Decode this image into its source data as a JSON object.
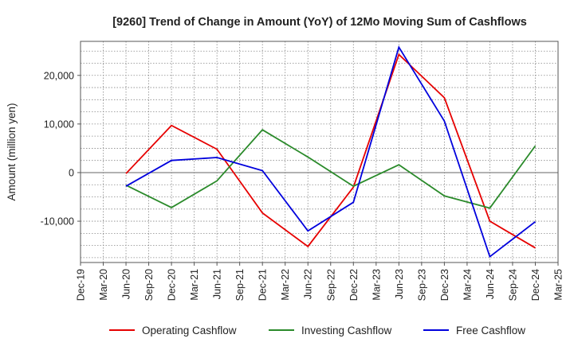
{
  "chart_data": {
    "type": "line",
    "title": "[9260]  Trend of Change in Amount (YoY) of 12Mo Moving Sum of Cashflows",
    "xlabel": "",
    "ylabel": "Amount (million yen)",
    "categories": [
      "Dec-19",
      "Mar-20",
      "Jun-20",
      "Sep-20",
      "Dec-20",
      "Mar-21",
      "Jun-21",
      "Sep-21",
      "Dec-21",
      "Mar-22",
      "Jun-22",
      "Sep-22",
      "Dec-22",
      "Mar-23",
      "Jun-23",
      "Sep-23",
      "Dec-23",
      "Mar-24",
      "Jun-24",
      "Sep-24",
      "Dec-24",
      "Mar-25"
    ],
    "ylim": [
      -18500,
      27000
    ],
    "yticks": [
      -10000,
      0,
      10000,
      20000
    ],
    "ytick_labels": [
      "-10,000",
      "0",
      "10,000",
      "20,000"
    ],
    "grid": true,
    "legend_position": "bottom",
    "series": [
      {
        "name": "Operating Cashflow",
        "color": "#e60000",
        "points": [
          [
            "Jun-20",
            -200
          ],
          [
            "Dec-20",
            9700
          ],
          [
            "Jun-21",
            4800
          ],
          [
            "Dec-21",
            -8300
          ],
          [
            "Jun-22",
            -15200
          ],
          [
            "Dec-22",
            -3000
          ],
          [
            "Jun-23",
            24300
          ],
          [
            "Dec-23",
            15400
          ],
          [
            "Jun-24",
            -10000
          ],
          [
            "Dec-24",
            -15500
          ]
        ]
      },
      {
        "name": "Investing Cashflow",
        "color": "#2a8a2a",
        "points": [
          [
            "Jun-20",
            -2600
          ],
          [
            "Dec-20",
            -7200
          ],
          [
            "Jun-21",
            -1700
          ],
          [
            "Dec-21",
            8800
          ],
          [
            "Jun-22",
            3200
          ],
          [
            "Dec-22",
            -2800
          ],
          [
            "Jun-23",
            1600
          ],
          [
            "Dec-23",
            -4800
          ],
          [
            "Jun-24",
            -7300
          ],
          [
            "Dec-24",
            5500
          ]
        ]
      },
      {
        "name": "Free Cashflow",
        "color": "#0000dd",
        "points": [
          [
            "Jun-20",
            -2800
          ],
          [
            "Dec-20",
            2500
          ],
          [
            "Jun-21",
            3100
          ],
          [
            "Dec-21",
            400
          ],
          [
            "Jun-22",
            -12000
          ],
          [
            "Dec-22",
            -6100
          ],
          [
            "Jun-23",
            25800
          ],
          [
            "Dec-23",
            10600
          ],
          [
            "Jun-24",
            -17300
          ],
          [
            "Dec-24",
            -10100
          ]
        ]
      }
    ]
  }
}
